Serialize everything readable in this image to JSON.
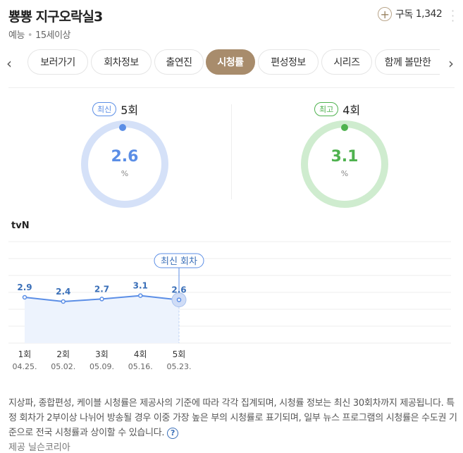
{
  "header": {
    "title": "뿅뿅 지구오락실3",
    "genre": "예능",
    "rating": "15세이상",
    "subscribe_label": "구독",
    "subscribe_count": "1,342"
  },
  "tabs": [
    {
      "label": "보러가기"
    },
    {
      "label": "회차정보"
    },
    {
      "label": "출연진"
    },
    {
      "label": "시청률",
      "active": true
    },
    {
      "label": "편성정보"
    },
    {
      "label": "시리즈"
    },
    {
      "label": "함께 볼만한"
    }
  ],
  "summary": {
    "latest": {
      "badge": "최신",
      "episode": "5회",
      "value": "2.6",
      "unit": "%",
      "color": "#5b8ee6",
      "track": "#d5e1f8"
    },
    "best": {
      "badge": "최고",
      "episode": "4회",
      "value": "3.1",
      "unit": "%",
      "color": "#4fb24f",
      "track": "#cfeccf"
    }
  },
  "chart_data": {
    "type": "line",
    "channel": "tvN",
    "callout": "최신 회차",
    "points": [
      {
        "ep": "1회",
        "date": "04.25.",
        "value": 2.9
      },
      {
        "ep": "2회",
        "date": "05.02.",
        "value": 2.4
      },
      {
        "ep": "3회",
        "date": "05.09.",
        "value": 2.7
      },
      {
        "ep": "4회",
        "date": "05.16.",
        "value": 3.1
      },
      {
        "ep": "5회",
        "date": "05.23.",
        "value": 2.6
      }
    ],
    "color": "#5b8ee6"
  },
  "notice": "지상파, 종합편성, 케이블 시청률은 제공사의 기준에 따라 각각 집계되며, 시청률 정보는 최신 30회차까지 제공됩니다. 특정 회차가 2부이상 나뉘어 방송될 경우 이중 가장 높은 부의 시청률로 표기되며, 일부 뉴스 프로그램의 시청률은 수도권 기준으로 전국 시청률과 상이할 수 있습니다.",
  "source": "제공 닐슨코리아"
}
